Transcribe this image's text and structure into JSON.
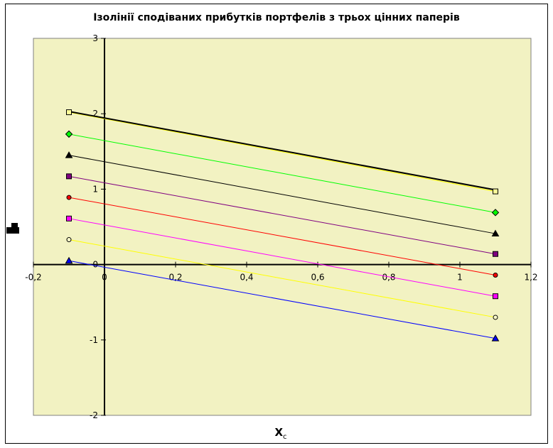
{
  "chart_data": {
    "type": "line",
    "title": "Ізолінії сподіваних прибутків портфелів з трьох цінних паперів",
    "xlabel": "Xc",
    "xlabel_main": "X",
    "xlabel_sub": "c",
    "ylabel": "",
    "xlim": [
      -0.2,
      1.2
    ],
    "ylim": [
      -2,
      3
    ],
    "x_ticks": [
      "-0,2",
      "0",
      "0,2",
      "0,4",
      "0,6",
      "0,8",
      "1",
      "1,2"
    ],
    "x_tick_values": [
      -0.2,
      0,
      0.2,
      0.4,
      0.6,
      0.8,
      1,
      1.2
    ],
    "y_ticks": [
      "-2",
      "-1",
      "0",
      "1",
      "2",
      "3"
    ],
    "y_tick_values": [
      -2,
      -1,
      0,
      1,
      2,
      3
    ],
    "grid": false,
    "legend": "none",
    "background": "#f2f2c2",
    "series": [
      {
        "x": [
          -0.1,
          1.1
        ],
        "y": [
          2.02,
          0.97
        ],
        "color": "#ffff00",
        "marker": "square",
        "marker_fill": "#ffff99",
        "width": 1
      },
      {
        "x": [
          -0.1,
          1.1
        ],
        "y": [
          1.73,
          0.69
        ],
        "color": "#00ff00",
        "marker": "diamond",
        "marker_fill": "#00ff00",
        "width": 1
      },
      {
        "x": [
          -0.1,
          1.1
        ],
        "y": [
          1.45,
          0.41
        ],
        "color": "#000000",
        "marker": "triangle",
        "marker_fill": "#000000",
        "width": 1
      },
      {
        "x": [
          -0.1,
          1.1
        ],
        "y": [
          1.17,
          0.14
        ],
        "color": "#800080",
        "marker": "square",
        "marker_fill": "#800080",
        "width": 1
      },
      {
        "x": [
          -0.1,
          1.1
        ],
        "y": [
          0.89,
          -0.14
        ],
        "color": "#ff0000",
        "marker": "circle",
        "marker_fill": "#ff0000",
        "width": 1
      },
      {
        "x": [
          -0.1,
          1.1
        ],
        "y": [
          0.61,
          -0.42
        ],
        "color": "#ff00ff",
        "marker": "square",
        "marker_fill": "#ff00ff",
        "width": 1
      },
      {
        "x": [
          -0.1,
          1.1
        ],
        "y": [
          0.33,
          -0.7
        ],
        "color": "#ffff00",
        "marker": "circle",
        "marker_fill": "#ffffcc",
        "width": 1
      },
      {
        "x": [
          -0.1,
          1.1
        ],
        "y": [
          0.05,
          -0.98
        ],
        "color": "#0000ff",
        "marker": "triangle",
        "marker_fill": "#0000ff",
        "width": 1
      },
      {
        "x": [
          -0.1,
          1.1
        ],
        "y": [
          2.03,
          0.99
        ],
        "color": "#000000",
        "marker": "none",
        "marker_fill": "#000000",
        "width": 2
      }
    ]
  }
}
